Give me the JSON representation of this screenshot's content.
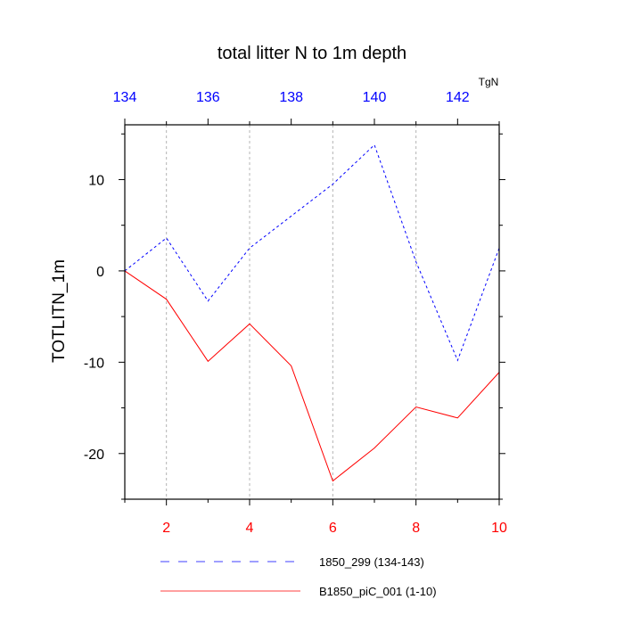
{
  "chart_data": {
    "type": "line",
    "title": "total litter N to 1m depth",
    "ylabel": "TOTLITN_1m",
    "top_axis_units": "TgN",
    "grid": "vertical dashed lines at bottom-axis major ticks",
    "legend_placement": "bottom",
    "bottom_axis": {
      "range": [
        1,
        10
      ],
      "ticks": [
        2,
        4,
        6,
        8,
        10
      ],
      "tick_labels": [
        "2",
        "4",
        "6",
        "8",
        "10"
      ],
      "color": "#ff0000"
    },
    "top_axis": {
      "range": [
        134,
        143
      ],
      "ticks": [
        134,
        136,
        138,
        140,
        142
      ],
      "tick_labels": [
        "134",
        "136",
        "138",
        "140",
        "142"
      ],
      "color": "#0000ff"
    },
    "y_axis": {
      "range": [
        -25,
        16
      ],
      "ticks": [
        10,
        0,
        -10,
        -20
      ],
      "tick_labels": [
        "10",
        "0",
        "-10",
        "-20"
      ]
    },
    "series": [
      {
        "name": "1850_299 (134-143)",
        "axis": "top",
        "color": "#0000ff",
        "style": "dashed",
        "x": [
          134,
          135,
          136,
          137,
          138,
          139,
          140,
          141,
          142,
          143
        ],
        "y": [
          0,
          3.6,
          -3.3,
          2.5,
          6.0,
          9.5,
          13.8,
          1.0,
          -9.8,
          2.5
        ]
      },
      {
        "name": "B1850_piC_001 (1-10)",
        "axis": "bottom",
        "color": "#ff0000",
        "style": "solid",
        "x": [
          1,
          2,
          3,
          4,
          5,
          6,
          7,
          8,
          9,
          10
        ],
        "y": [
          0,
          -3.1,
          -9.9,
          -5.8,
          -10.4,
          -23.0,
          -19.4,
          -14.9,
          -16.1,
          -11.1
        ]
      }
    ]
  }
}
